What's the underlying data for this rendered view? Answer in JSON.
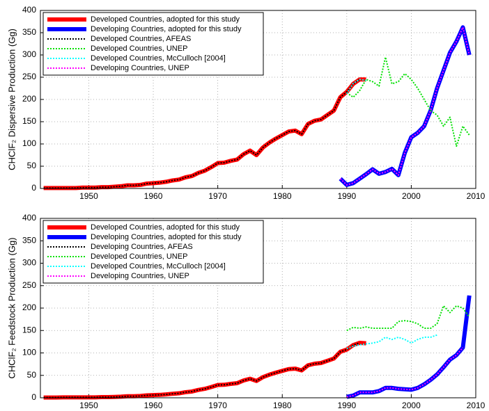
{
  "chart_data": [
    {
      "type": "line",
      "ylabel": "CHClF₂ Dispersive Production (Gg)",
      "xlim": [
        1942.5,
        2010
      ],
      "ylim": [
        0,
        400
      ],
      "xticks": [
        1950,
        1960,
        1970,
        1980,
        1990,
        2000,
        2010
      ],
      "yticks": [
        0,
        50,
        100,
        150,
        200,
        250,
        300,
        350,
        400
      ],
      "grid": true,
      "legend": "upper left",
      "series": [
        {
          "name": "Developed Countries, adopted for this study",
          "color": "#ff0000",
          "linestyle": "solid",
          "x": [
            1943,
            1944,
            1945,
            1946,
            1947,
            1948,
            1949,
            1950,
            1951,
            1952,
            1953,
            1954,
            1955,
            1956,
            1957,
            1958,
            1959,
            1960,
            1961,
            1962,
            1963,
            1964,
            1965,
            1966,
            1967,
            1968,
            1969,
            1970,
            1971,
            1972,
            1973,
            1974,
            1975,
            1976,
            1977,
            1978,
            1979,
            1980,
            1981,
            1982,
            1983,
            1984,
            1985,
            1986,
            1987,
            1988,
            1989,
            1990,
            1991,
            1992,
            1993
          ],
          "values": [
            1,
            1,
            1,
            1,
            1,
            1,
            2,
            2,
            2,
            3,
            3,
            4,
            5,
            7,
            7,
            8,
            11,
            12,
            13,
            15,
            18,
            20,
            25,
            28,
            35,
            40,
            48,
            57,
            58,
            62,
            65,
            77,
            85,
            75,
            92,
            103,
            112,
            120,
            128,
            130,
            122,
            145,
            152,
            155,
            165,
            175,
            205,
            217,
            235,
            245,
            245
          ]
        },
        {
          "name": "Developing Countries, adopted for this study",
          "color": "#0000ff",
          "linestyle": "solid",
          "x": [
            1989,
            1990,
            1991,
            1992,
            1993,
            1994,
            1995,
            1996,
            1997,
            1998,
            1999,
            2000,
            2001,
            2002,
            2003,
            2004,
            2005,
            2006,
            2007,
            2008,
            2009
          ],
          "values": [
            22,
            8,
            12,
            22,
            32,
            43,
            33,
            37,
            44,
            30,
            80,
            115,
            125,
            140,
            175,
            225,
            265,
            305,
            330,
            362,
            300
          ]
        },
        {
          "name": "Developed Countries, AFEAS",
          "color": "#000000",
          "linestyle": "dotted",
          "x": [
            1943,
            1944,
            1945,
            1946,
            1947,
            1948,
            1949,
            1950,
            1951,
            1952,
            1953,
            1954,
            1955,
            1956,
            1957,
            1958,
            1959,
            1960,
            1961,
            1962,
            1963,
            1964,
            1965,
            1966,
            1967,
            1968,
            1969,
            1970,
            1971,
            1972,
            1973,
            1974,
            1975,
            1976,
            1977,
            1978,
            1979,
            1980,
            1981,
            1982,
            1983,
            1984,
            1985,
            1986,
            1987,
            1988,
            1989,
            1990,
            1991,
            1992
          ],
          "values": [
            1,
            1,
            1,
            1,
            1,
            1,
            2,
            2,
            2,
            3,
            3,
            4,
            5,
            7,
            7,
            8,
            11,
            12,
            13,
            15,
            18,
            20,
            25,
            28,
            35,
            40,
            48,
            57,
            58,
            62,
            65,
            77,
            85,
            75,
            92,
            103,
            112,
            120,
            128,
            130,
            122,
            145,
            152,
            155,
            165,
            175,
            205,
            217,
            235,
            245
          ]
        },
        {
          "name": "Developed Countries, UNEP",
          "color": "#00e000",
          "linestyle": "dotted",
          "x": [
            1990,
            1991,
            1992,
            1993,
            1994,
            1995,
            1996,
            1997,
            1998,
            1999,
            2000,
            2001,
            2002,
            2003,
            2004,
            2005,
            2006,
            2007,
            2008,
            2009
          ],
          "values": [
            215,
            205,
            220,
            245,
            240,
            230,
            295,
            235,
            240,
            258,
            245,
            225,
            200,
            175,
            165,
            140,
            160,
            95,
            140,
            120
          ]
        },
        {
          "name": "Developed Countries, McCulloch [2004]",
          "color": "#00ffff",
          "linestyle": "dotted",
          "x": [
            1990,
            1991,
            1992,
            1993
          ],
          "values": [
            213,
            236,
            245,
            243
          ]
        },
        {
          "name": "Developing Countries, UNEP",
          "color": "#ff00ff",
          "linestyle": "dotted",
          "x": [
            1989,
            1990,
            1991,
            1992,
            1993,
            1994,
            1995,
            1996,
            1997,
            1998,
            1999,
            2000,
            2001,
            2002,
            2003,
            2004,
            2005,
            2006,
            2007,
            2008,
            2009
          ],
          "values": [
            22,
            8,
            12,
            22,
            32,
            43,
            33,
            37,
            44,
            30,
            80,
            115,
            125,
            140,
            175,
            225,
            265,
            305,
            330,
            362,
            300
          ]
        }
      ]
    },
    {
      "type": "line",
      "ylabel": "CHClF₂ Feedstock Production (Gg)",
      "xlim": [
        1942.5,
        2010
      ],
      "ylim": [
        0,
        400
      ],
      "xticks": [
        1950,
        1960,
        1970,
        1980,
        1990,
        2000,
        2010
      ],
      "yticks": [
        0,
        50,
        100,
        150,
        200,
        250,
        300,
        350,
        400
      ],
      "grid": true,
      "legend": "upper left",
      "series": [
        {
          "name": "Developed Countries, adopted for this study",
          "color": "#ff0000",
          "linestyle": "solid",
          "x": [
            1943,
            1944,
            1945,
            1946,
            1947,
            1948,
            1949,
            1950,
            1951,
            1952,
            1953,
            1954,
            1955,
            1956,
            1957,
            1958,
            1959,
            1960,
            1961,
            1962,
            1963,
            1964,
            1965,
            1966,
            1967,
            1968,
            1969,
            1970,
            1971,
            1972,
            1973,
            1974,
            1975,
            1976,
            1977,
            1978,
            1979,
            1980,
            1981,
            1982,
            1983,
            1984,
            1985,
            1986,
            1987,
            1988,
            1989,
            1990,
            1991,
            1992,
            1993
          ],
          "values": [
            0.5,
            0.5,
            0.5,
            1,
            1,
            1,
            1,
            1,
            1,
            1.5,
            1.5,
            2,
            2.5,
            3.5,
            3.5,
            4,
            5.5,
            6,
            6.5,
            7.5,
            9,
            10,
            12.5,
            14,
            17.5,
            20,
            24,
            28.5,
            29,
            31,
            32.5,
            38.5,
            42.5,
            37.5,
            46,
            51.5,
            56,
            60,
            64,
            65,
            61,
            72.5,
            76,
            77.5,
            82.5,
            87.5,
            102.5,
            107.5,
            117.5,
            122.5,
            121.5
          ]
        },
        {
          "name": "Developing Countries, adopted for this study",
          "color": "#0000ff",
          "linestyle": "solid",
          "x": [
            1990,
            1991,
            1992,
            1993,
            1994,
            1995,
            1996,
            1997,
            1998,
            1999,
            2000,
            2001,
            2002,
            2003,
            2004,
            2005,
            2006,
            2007,
            2008,
            2009
          ],
          "values": [
            2,
            5,
            12,
            12,
            12,
            15,
            22,
            22,
            20,
            19,
            18,
            22,
            30,
            40,
            52,
            68,
            85,
            95,
            112,
            228
          ]
        },
        {
          "name": "Developing Countries, AFEAS",
          "color": "#000000",
          "linestyle": "dotted",
          "x": [
            1943,
            1944,
            1945,
            1946,
            1947,
            1948,
            1949,
            1950,
            1951,
            1952,
            1953,
            1954,
            1955,
            1956,
            1957,
            1958,
            1959,
            1960,
            1961,
            1962,
            1963,
            1964,
            1965,
            1966,
            1967,
            1968,
            1969,
            1970,
            1971,
            1972,
            1973,
            1974,
            1975,
            1976,
            1977,
            1978,
            1979,
            1980,
            1981,
            1982,
            1983,
            1984,
            1985,
            1986,
            1987,
            1988,
            1989,
            1990,
            1991,
            1992
          ],
          "values": [
            0.5,
            0.5,
            0.5,
            1,
            1,
            1,
            1,
            1,
            1,
            1.5,
            1.5,
            2,
            2.5,
            3.5,
            3.5,
            4,
            5.5,
            6,
            6.5,
            7.5,
            9,
            10,
            12.5,
            14,
            17.5,
            20,
            24,
            28.5,
            29,
            31,
            32.5,
            38.5,
            42.5,
            37.5,
            46,
            51.5,
            56,
            60,
            64,
            65,
            61,
            72.5,
            76,
            77.5,
            82.5,
            87.5,
            102.5,
            107.5,
            117.5,
            122.5
          ]
        },
        {
          "name": "Developed Countries, UNEP",
          "color": "#00e000",
          "linestyle": "dotted",
          "x": [
            1990,
            1991,
            1992,
            1993,
            1994,
            1995,
            1996,
            1997,
            1998,
            1999,
            2000,
            2001,
            2002,
            2003,
            2004,
            2005,
            2006,
            2007,
            2008,
            2009
          ],
          "values": [
            150,
            157,
            155,
            158,
            155,
            155,
            155,
            155,
            170,
            172,
            170,
            165,
            155,
            155,
            165,
            205,
            190,
            205,
            200,
            180
          ]
        },
        {
          "name": "Developed Countries, McCulloch [2004]",
          "color": "#00ffff",
          "linestyle": "dotted",
          "x": [
            1990,
            1991,
            1992,
            1993,
            1994,
            1995,
            1996,
            1997,
            1998,
            1999,
            2000,
            2001,
            2002,
            2003,
            2004
          ],
          "values": [
            110,
            115,
            118,
            120,
            122,
            125,
            135,
            130,
            135,
            130,
            122,
            130,
            135,
            135,
            140
          ]
        },
        {
          "name": "Developing Countries, UNEP",
          "color": "#ff00ff",
          "linestyle": "dotted",
          "x": [
            1990,
            1991,
            1992,
            1993,
            1994,
            1995,
            1996,
            1997,
            1998,
            1999,
            2000,
            2001,
            2002,
            2003,
            2004,
            2005,
            2006,
            2007,
            2008
          ],
          "values": [
            2,
            5,
            12,
            12,
            12,
            15,
            22,
            22,
            20,
            19,
            18,
            22,
            30,
            40,
            52,
            68,
            85,
            95,
            112
          ]
        }
      ]
    }
  ]
}
